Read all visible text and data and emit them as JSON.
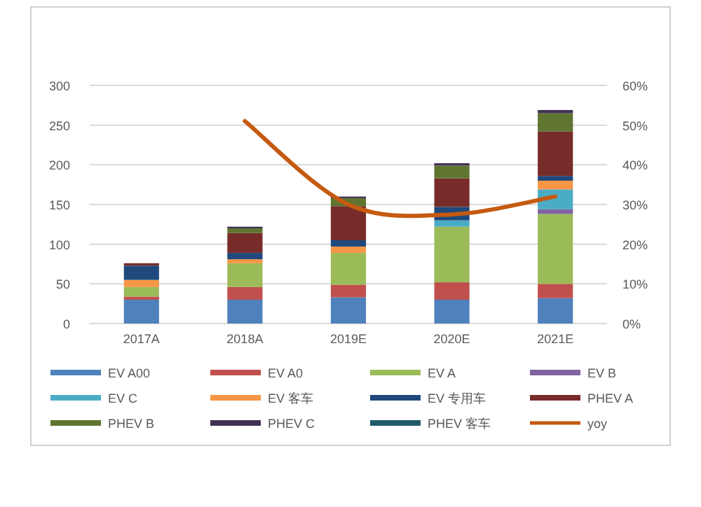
{
  "chart_data": {
    "type": "bar",
    "stacked": true,
    "categories": [
      "2017A",
      "2018A",
      "2019E",
      "2020E",
      "2021E"
    ],
    "series": [
      {
        "name": "EV A00",
        "color": "#4f81bd",
        "values": [
          30,
          30,
          33,
          30,
          32
        ]
      },
      {
        "name": "EV A0",
        "color": "#c0504d",
        "values": [
          4,
          16,
          16,
          22,
          18
        ]
      },
      {
        "name": "EV A",
        "color": "#9bbb59",
        "values": [
          12,
          30,
          40,
          70,
          88
        ]
      },
      {
        "name": "EV B",
        "color": "#8064a2",
        "values": [
          0,
          0,
          0,
          0,
          6
        ]
      },
      {
        "name": "EV C",
        "color": "#4bacc6",
        "values": [
          0,
          0,
          0,
          8,
          25
        ]
      },
      {
        "name": "EV 客车",
        "color": "#f79646",
        "values": [
          9,
          5,
          8,
          0,
          11
        ]
      },
      {
        "name": "EV 专用车",
        "color": "#1f497d",
        "values": [
          18,
          8,
          8,
          17,
          6
        ]
      },
      {
        "name": "PHEV A",
        "color": "#772c2a",
        "values": [
          3,
          25,
          43,
          36,
          56
        ]
      },
      {
        "name": "PHEV B",
        "color": "#5f7530",
        "values": [
          0,
          6,
          10,
          16,
          23
        ]
      },
      {
        "name": "PHEV C",
        "color": "#403152",
        "values": [
          0,
          2,
          2,
          3,
          4
        ]
      },
      {
        "name": "PHEV 客车",
        "color": "#215968",
        "values": [
          0,
          0,
          0,
          0,
          0
        ]
      },
      {
        "name": "yoy",
        "color": "#c55a11",
        "type": "line",
        "axis": "y2",
        "values": [
          null,
          51,
          30,
          27.5,
          32
        ]
      }
    ],
    "ylim": [
      0,
      300
    ],
    "yticks": [
      0,
      50,
      100,
      150,
      200,
      250,
      300
    ],
    "y2lim": [
      0,
      60
    ],
    "y2ticks": [
      {
        "value": 0,
        "label": "0%"
      },
      {
        "value": 10,
        "label": "10%"
      },
      {
        "value": 20,
        "label": "20%"
      },
      {
        "value": 30,
        "label": "30%"
      },
      {
        "value": 40,
        "label": "40%"
      },
      {
        "value": 50,
        "label": "50%"
      },
      {
        "value": 60,
        "label": "60%"
      }
    ],
    "grid": "y",
    "legend": "bottom"
  }
}
